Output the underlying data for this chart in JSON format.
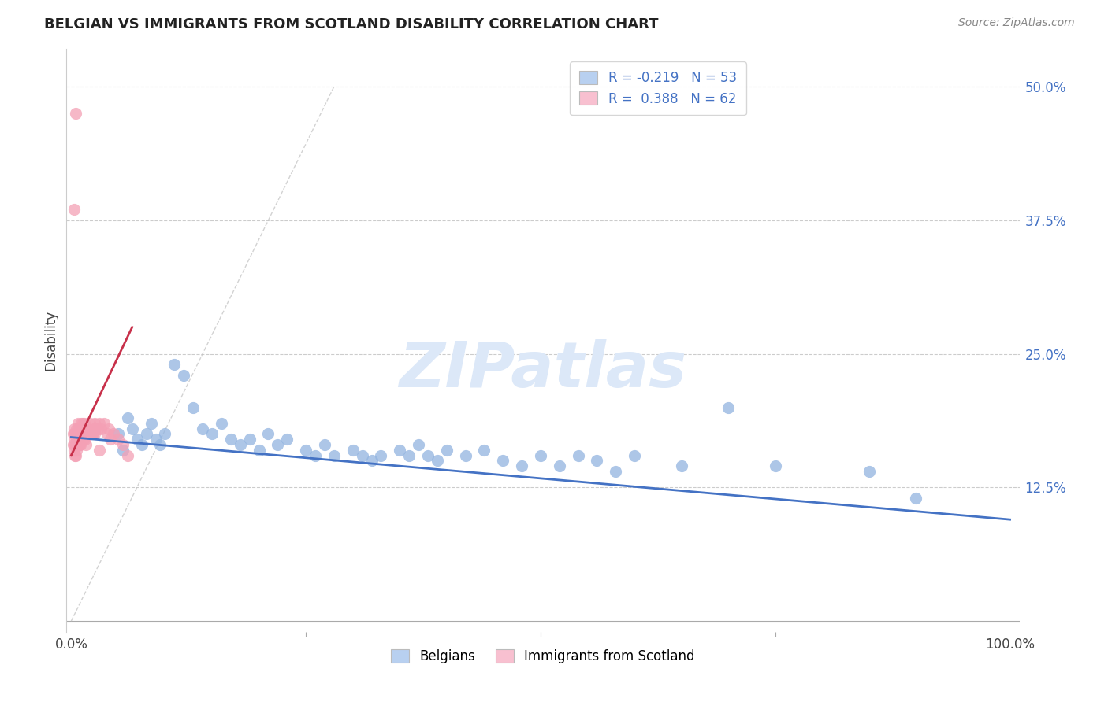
{
  "title": "BELGIAN VS IMMIGRANTS FROM SCOTLAND DISABILITY CORRELATION CHART",
  "source": "Source: ZipAtlas.com",
  "ylabel": "Disability",
  "belgians_R": -0.219,
  "belgians_N": 53,
  "scotland_R": 0.388,
  "scotland_N": 62,
  "blue_scatter_color": "#92b4e0",
  "pink_scatter_color": "#f4a0b5",
  "blue_line_color": "#4472c4",
  "pink_line_color": "#c8304a",
  "legend_blue_fill": "#b8d0f0",
  "legend_pink_fill": "#f8c0d0",
  "watermark_color": "#dce8f8",
  "background_color": "#ffffff",
  "y_ticks": [
    0.0,
    0.125,
    0.25,
    0.375,
    0.5
  ],
  "y_tick_labels": [
    "",
    "12.5%",
    "25.0%",
    "37.5%",
    "50.0%"
  ],
  "belgians_x": [
    0.05,
    0.055,
    0.06,
    0.065,
    0.07,
    0.075,
    0.08,
    0.085,
    0.09,
    0.095,
    0.1,
    0.11,
    0.12,
    0.13,
    0.14,
    0.15,
    0.16,
    0.17,
    0.18,
    0.19,
    0.2,
    0.21,
    0.22,
    0.23,
    0.25,
    0.26,
    0.27,
    0.28,
    0.3,
    0.31,
    0.32,
    0.33,
    0.35,
    0.36,
    0.37,
    0.38,
    0.39,
    0.4,
    0.42,
    0.44,
    0.46,
    0.48,
    0.5,
    0.52,
    0.54,
    0.56,
    0.58,
    0.6,
    0.65,
    0.7,
    0.75,
    0.85,
    0.9
  ],
  "belgians_y": [
    0.175,
    0.16,
    0.19,
    0.18,
    0.17,
    0.165,
    0.175,
    0.185,
    0.17,
    0.165,
    0.175,
    0.24,
    0.23,
    0.2,
    0.18,
    0.175,
    0.185,
    0.17,
    0.165,
    0.17,
    0.16,
    0.175,
    0.165,
    0.17,
    0.16,
    0.155,
    0.165,
    0.155,
    0.16,
    0.155,
    0.15,
    0.155,
    0.16,
    0.155,
    0.165,
    0.155,
    0.15,
    0.16,
    0.155,
    0.16,
    0.15,
    0.145,
    0.155,
    0.145,
    0.155,
    0.15,
    0.14,
    0.155,
    0.145,
    0.2,
    0.145,
    0.14,
    0.115
  ],
  "scotland_x": [
    0.002,
    0.002,
    0.003,
    0.003,
    0.003,
    0.004,
    0.004,
    0.004,
    0.005,
    0.005,
    0.005,
    0.005,
    0.006,
    0.006,
    0.006,
    0.007,
    0.007,
    0.007,
    0.008,
    0.008,
    0.008,
    0.009,
    0.009,
    0.01,
    0.01,
    0.01,
    0.011,
    0.011,
    0.012,
    0.012,
    0.013,
    0.013,
    0.014,
    0.014,
    0.015,
    0.015,
    0.016,
    0.016,
    0.017,
    0.018,
    0.019,
    0.02,
    0.021,
    0.022,
    0.023,
    0.024,
    0.025,
    0.026,
    0.028,
    0.03,
    0.032,
    0.035,
    0.038,
    0.04,
    0.042,
    0.045,
    0.05,
    0.055,
    0.06,
    0.025,
    0.03,
    0.003
  ],
  "scotland_y": [
    0.175,
    0.165,
    0.18,
    0.17,
    0.16,
    0.175,
    0.165,
    0.155,
    0.475,
    0.175,
    0.165,
    0.155,
    0.18,
    0.17,
    0.16,
    0.185,
    0.175,
    0.165,
    0.18,
    0.175,
    0.165,
    0.175,
    0.165,
    0.18,
    0.175,
    0.165,
    0.185,
    0.175,
    0.185,
    0.175,
    0.18,
    0.17,
    0.185,
    0.175,
    0.18,
    0.17,
    0.175,
    0.165,
    0.18,
    0.175,
    0.175,
    0.185,
    0.175,
    0.175,
    0.175,
    0.18,
    0.185,
    0.18,
    0.18,
    0.185,
    0.18,
    0.185,
    0.175,
    0.18,
    0.17,
    0.175,
    0.17,
    0.165,
    0.155,
    0.175,
    0.16,
    0.385
  ]
}
